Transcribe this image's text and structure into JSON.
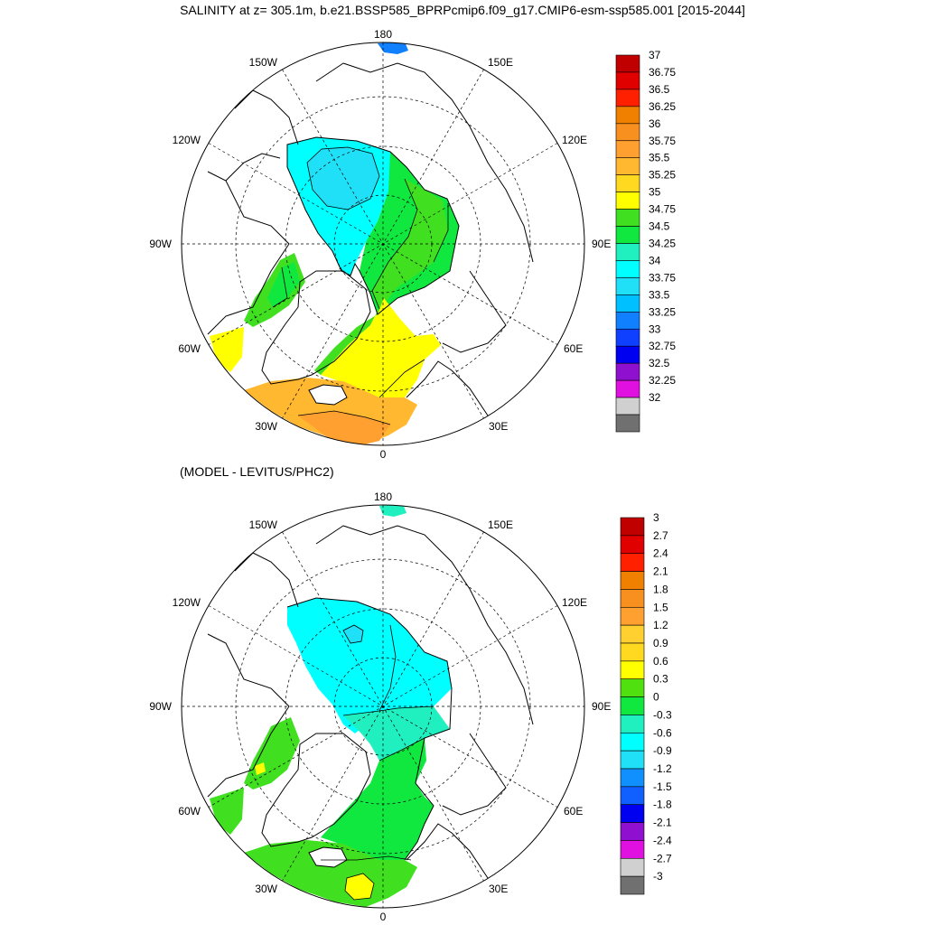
{
  "title": "SALINITY at z= 305.1m, b.e21.BSSP585_BPRPcmip6.f09_g17.CMIP6-esm-ssp585.001 [2015-2044]",
  "subtitle": "(MODEL - LEVITUS/PHC2)",
  "longitude_labels": [
    "180",
    "150E",
    "120E",
    "90E",
    "60E",
    "30E",
    "0",
    "30W",
    "60W",
    "90W",
    "120W",
    "150W"
  ],
  "panels": [
    {
      "name": "salinity",
      "colorbar": {
        "labels": [
          "37",
          "36.75",
          "36.5",
          "36.25",
          "36",
          "35.75",
          "35.5",
          "35.25",
          "35",
          "34.75",
          "34.5",
          "34.25",
          "34",
          "33.75",
          "33.5",
          "33.25",
          "33",
          "32.75",
          "32.5",
          "32.25",
          "32"
        ],
        "colors": [
          "#c00000",
          "#e00000",
          "#ff2000",
          "#f08000",
          "#f89020",
          "#ffa030",
          "#ffb830",
          "#ffd820",
          "#ffff00",
          "#40e020",
          "#10e840",
          "#20f0c0",
          "#00ffff",
          "#20e0f8",
          "#00c0ff",
          "#1080ff",
          "#1040ff",
          "#0000f0",
          "#9010d0",
          "#e010e0",
          "#d0d0d0",
          "#707070"
        ]
      }
    },
    {
      "name": "difference",
      "colorbar": {
        "labels": [
          "3",
          "2.7",
          "2.4",
          "2.1",
          "1.8",
          "1.5",
          "1.2",
          "0.9",
          "0.6",
          "0.3",
          "0",
          "-0.3",
          "-0.6",
          "-0.9",
          "-1.2",
          "-1.5",
          "-1.8",
          "-2.1",
          "-2.4",
          "-2.7",
          "-3"
        ],
        "colors": [
          "#c00000",
          "#e00000",
          "#ff2000",
          "#f08000",
          "#f89020",
          "#ffa030",
          "#ffd030",
          "#ffd820",
          "#ffff00",
          "#50e010",
          "#10e840",
          "#20f0c0",
          "#00ffff",
          "#20e0f8",
          "#1090ff",
          "#1060ff",
          "#0000f0",
          "#9010d0",
          "#e010e0",
          "#d0d0d0",
          "#707070"
        ]
      }
    }
  ]
}
